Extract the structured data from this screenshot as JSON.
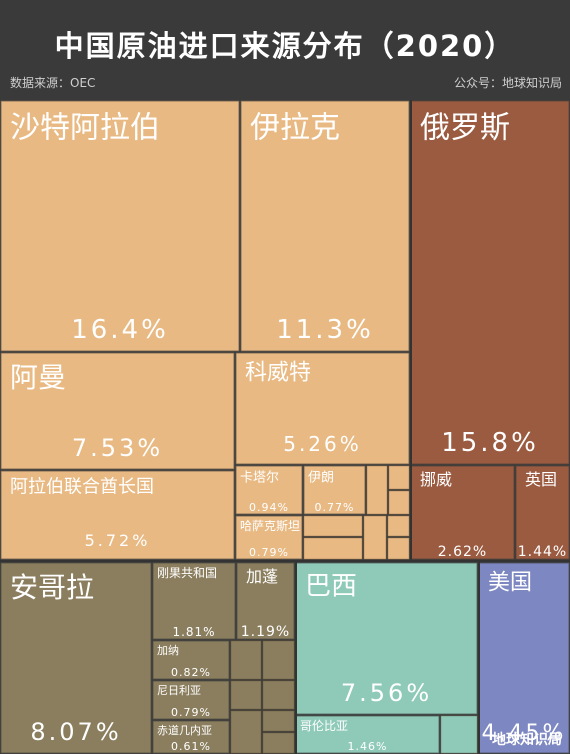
{
  "chart_data": {
    "type": "treemap",
    "title": "中国原油进口来源分布（2020）",
    "source": "数据来源：OEC",
    "credit": "公众号：地球知识局",
    "watermark": "地球知识局",
    "categories": [
      "沙特阿拉伯",
      "伊拉克",
      "俄罗斯",
      "阿曼",
      "科威特",
      "阿拉伯联合酋长国",
      "卡塔尔",
      "伊朗",
      "哈萨克斯坦",
      "挪威",
      "英国",
      "安哥拉",
      "刚果共和国",
      "加蓬",
      "加纳",
      "尼日利亚",
      "赤道几内亚",
      "巴西",
      "哥伦比亚",
      "美国"
    ],
    "values": [
      16.4,
      11.3,
      15.8,
      7.53,
      5.26,
      5.72,
      0.94,
      0.77,
      0.79,
      2.62,
      1.44,
      8.07,
      1.81,
      1.19,
      0.82,
      0.79,
      0.61,
      7.56,
      1.46,
      4.45
    ],
    "value_labels": [
      "16.4%",
      "11.3%",
      "15.8%",
      "7.53%",
      "5.26%",
      "5.72%",
      "0.94%",
      "0.77%",
      "0.79%",
      "2.62%",
      "1.44%",
      "8.07%",
      "1.81%",
      "1.19%",
      "0.82%",
      "0.79%",
      "0.61%",
      "7.56%",
      "1.46%",
      "4.45%"
    ],
    "colors": [
      "#e8b982",
      "#e8b982",
      "#9b5b40",
      "#e8b982",
      "#e8b982",
      "#e8b982",
      "#e8b982",
      "#e8b982",
      "#e8b982",
      "#9b5b40",
      "#9b5b40",
      "#8b7e5e",
      "#8b7e5e",
      "#8b7e5e",
      "#8b7e5e",
      "#8b7e5e",
      "#8b7e5e",
      "#8ecab7",
      "#8ecab7",
      "#7d87c1"
    ]
  }
}
